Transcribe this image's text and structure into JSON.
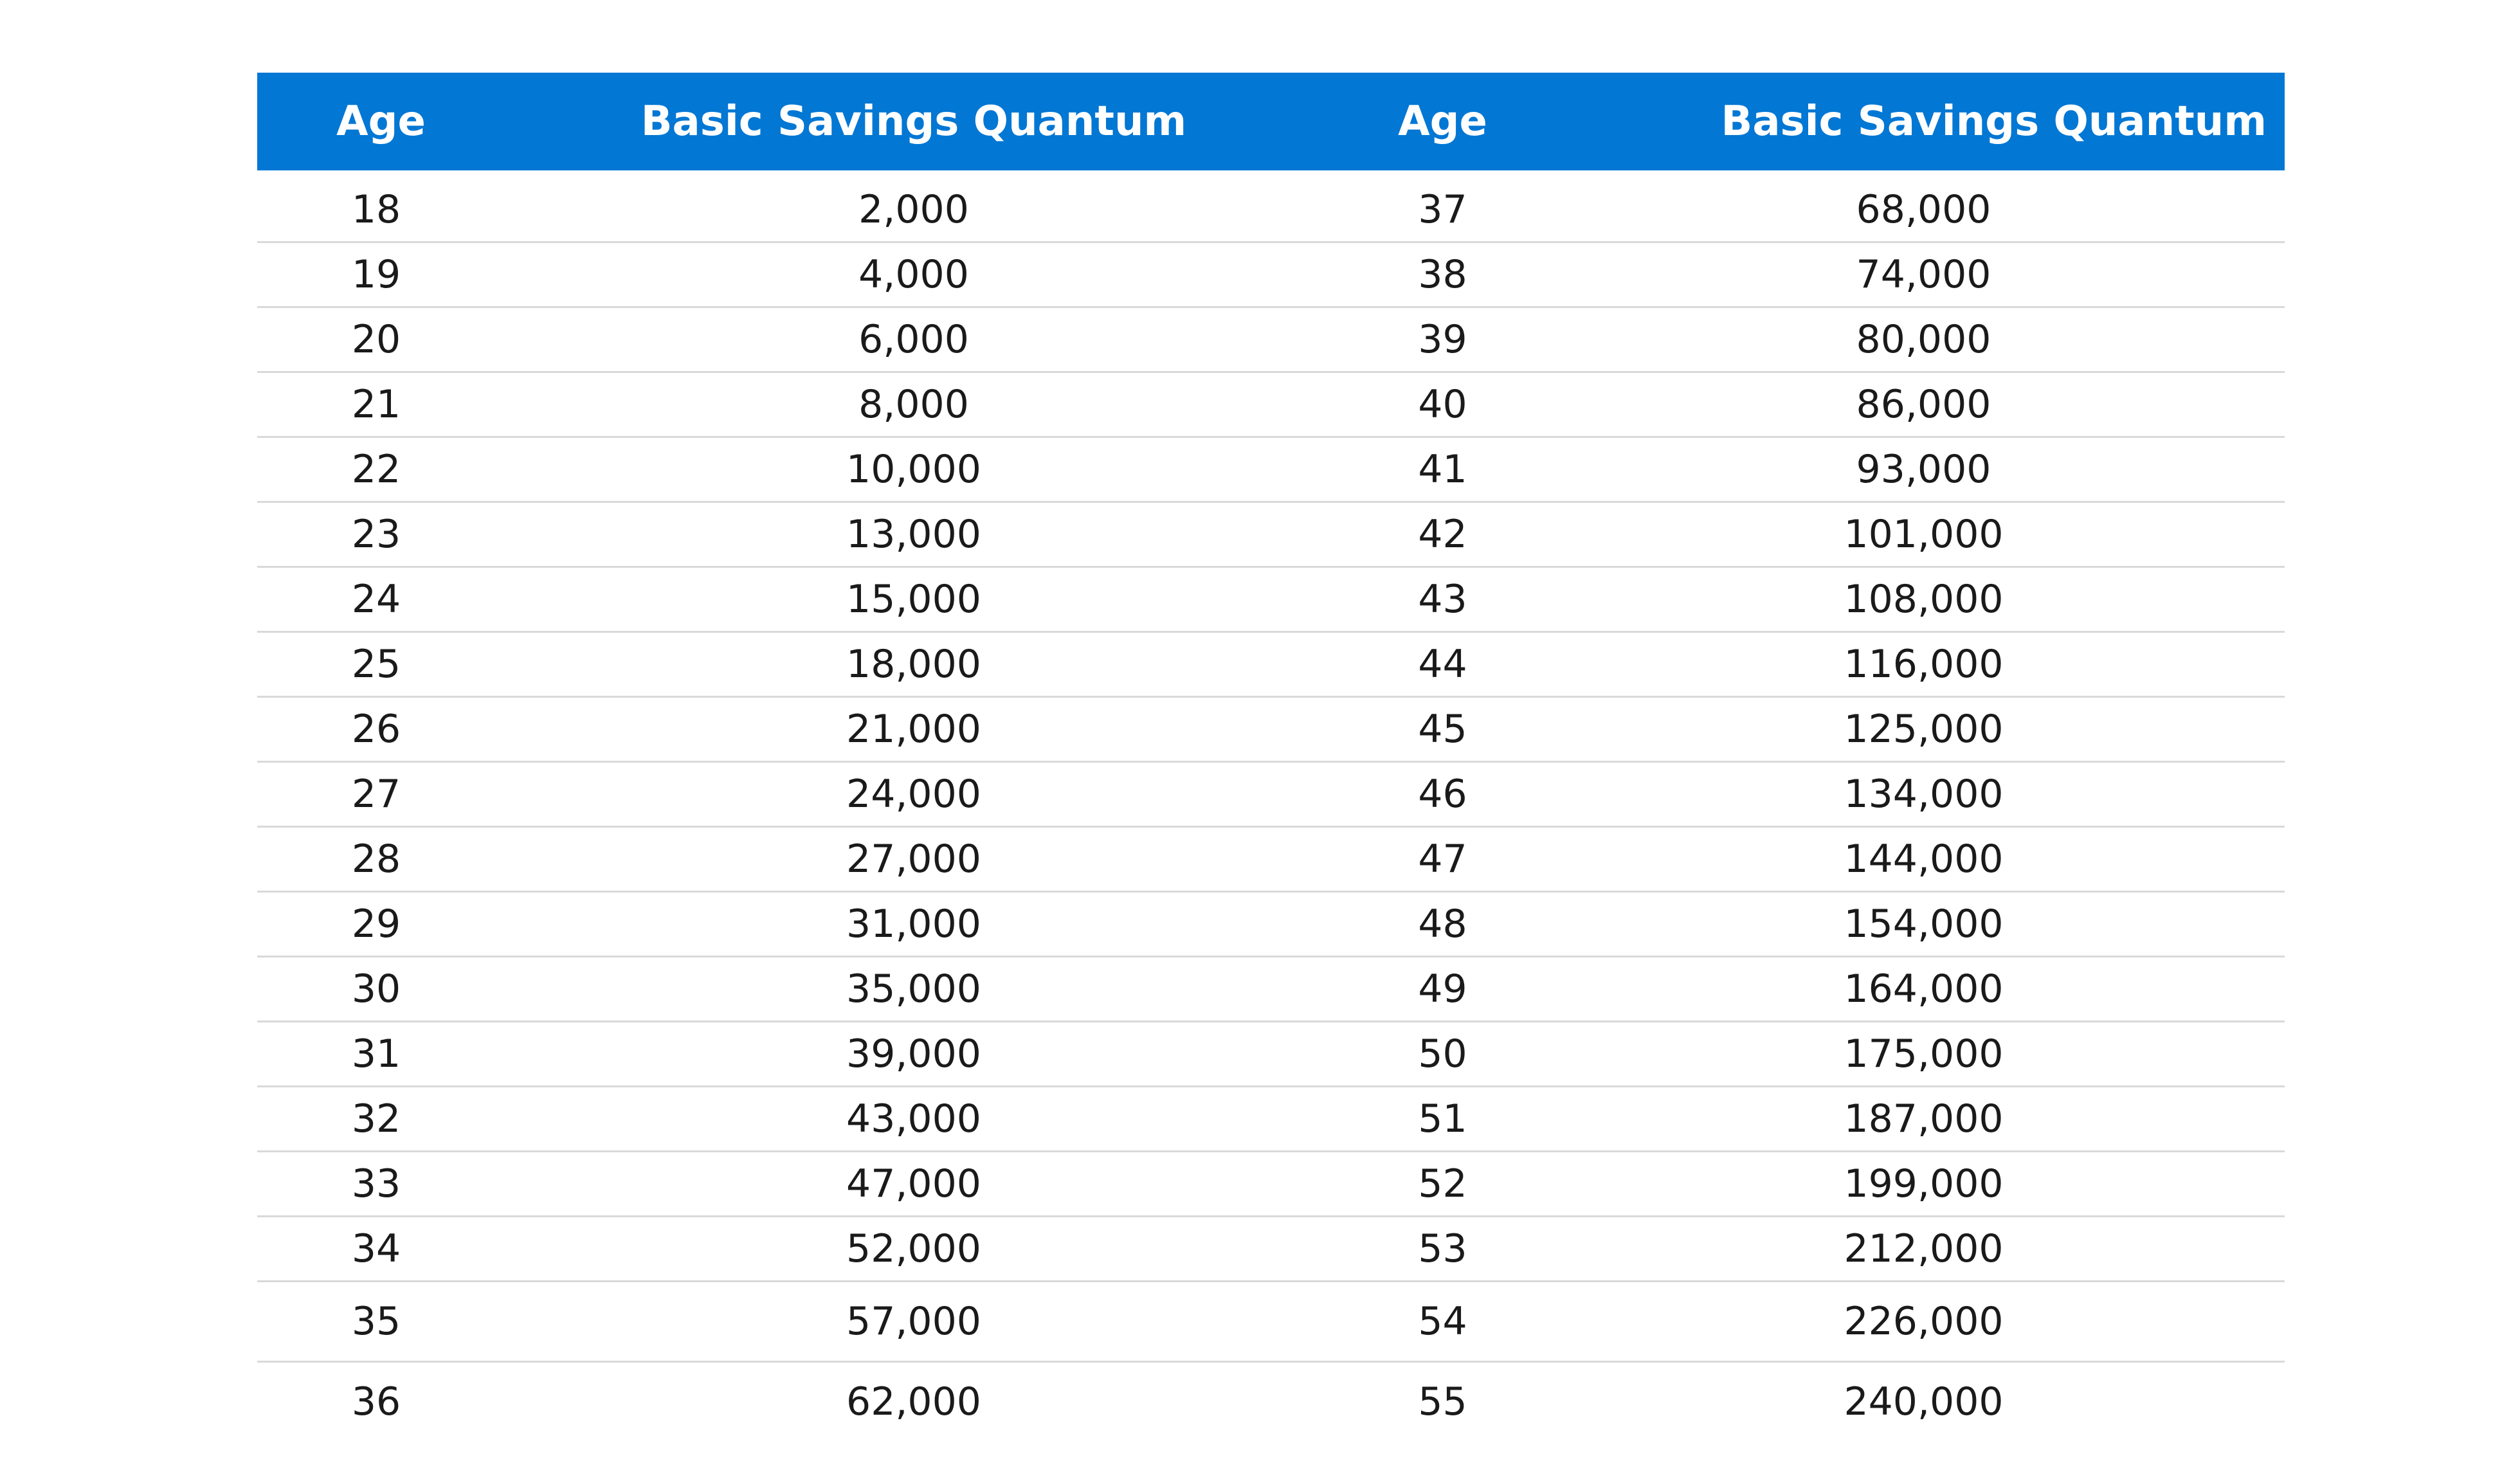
{
  "table": {
    "headers": [
      "Age",
      "Basic Savings Quantum",
      "Age",
      "Basic Savings Quantum"
    ],
    "rows": [
      [
        "18",
        "2,000",
        "37",
        "68,000"
      ],
      [
        "19",
        "4,000",
        "38",
        "74,000"
      ],
      [
        "20",
        "6,000",
        "39",
        "80,000"
      ],
      [
        "21",
        "8,000",
        "40",
        "86,000"
      ],
      [
        "22",
        "10,000",
        "41",
        "93,000"
      ],
      [
        "23",
        "13,000",
        "42",
        "101,000"
      ],
      [
        "24",
        "15,000",
        "43",
        "108,000"
      ],
      [
        "25",
        "18,000",
        "44",
        "116,000"
      ],
      [
        "26",
        "21,000",
        "45",
        "125,000"
      ],
      [
        "27",
        "24,000",
        "46",
        "134,000"
      ],
      [
        "28",
        "27,000",
        "47",
        "144,000"
      ],
      [
        "29",
        "31,000",
        "48",
        "154,000"
      ],
      [
        "30",
        "35,000",
        "49",
        "164,000"
      ],
      [
        "31",
        "39,000",
        "50",
        "175,000"
      ],
      [
        "32",
        "43,000",
        "51",
        "187,000"
      ],
      [
        "33",
        "47,000",
        "52",
        "199,000"
      ],
      [
        "34",
        "52,000",
        "53",
        "212,000"
      ],
      [
        "35",
        "57,000",
        "54",
        "226,000"
      ],
      [
        "36",
        "62,000",
        "55",
        "240,000"
      ]
    ]
  },
  "colors": {
    "header_background": "#0277d4",
    "header_text": "#ffffff",
    "row_divider": "#d9d9d9"
  }
}
